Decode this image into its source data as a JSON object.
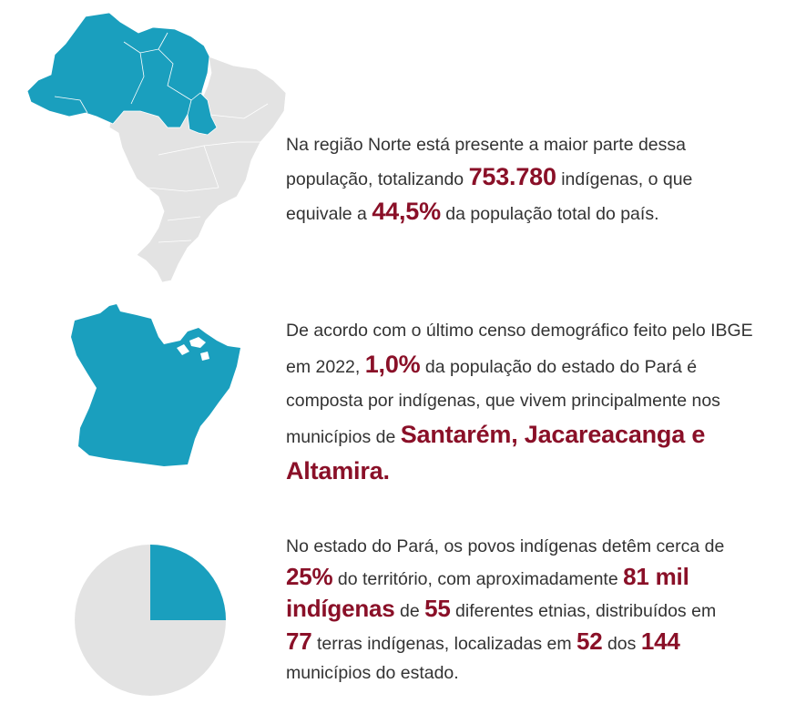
{
  "colors": {
    "highlight": "#8a1028",
    "region": "#1a9fbe",
    "other": "#e3e3e3",
    "text": "#333333"
  },
  "block1": {
    "p1": "Na região Norte está presente a maior parte dessa população, totalizando ",
    "v1": "753.780",
    "p2": " indígenas, o que equivale a ",
    "v2": "44,5%",
    "p3": " da população total do país."
  },
  "block2": {
    "p1": "De acordo com o último censo demográfico feito pelo IBGE em 2022, ",
    "v1": "1,0%",
    "p2": " da população do estado do Pará é composta por indígenas, que vivem principalmente nos municípios de ",
    "v2": "Santarém, Jacareacanga e Altamira."
  },
  "block3": {
    "p1": "No estado do Pará, os povos indígenas detêm cerca de ",
    "v1": "25%",
    "p2": " do território, com aproximadamente ",
    "v2": "81 mil indígenas",
    "p3": " de ",
    "v3": "55",
    "p4": " diferentes etnias, distribuídos em ",
    "v4": "77",
    "p5": " terras indígenas, localizadas em ",
    "v5": "52",
    "p6": " dos ",
    "v6": "144",
    "p7": " municípios do estado."
  },
  "pie": {
    "indigenous_share": 0.25
  }
}
